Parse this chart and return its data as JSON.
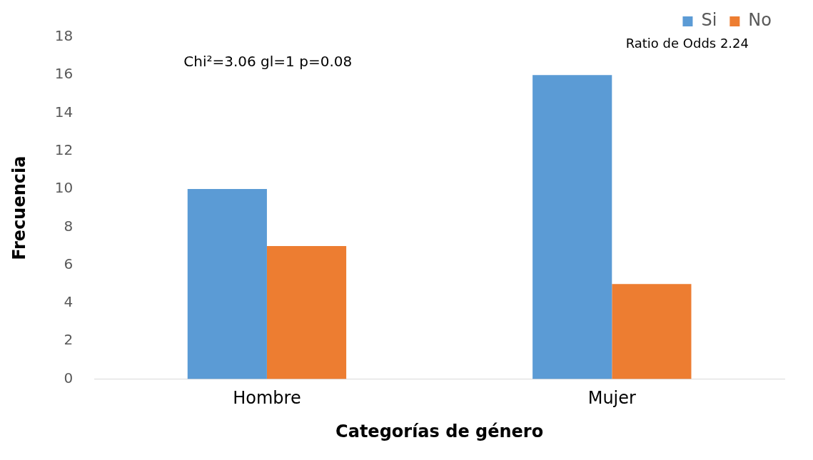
{
  "chart_data": {
    "type": "bar",
    "xlabel": "Categorías de género",
    "ylabel": "Frecuencia",
    "categories": [
      "Hombre",
      "Mujer"
    ],
    "series": [
      {
        "name": "Si",
        "color": "#5b9bd5",
        "values": [
          10,
          16
        ]
      },
      {
        "name": "No",
        "color": "#ed7d31",
        "values": [
          7,
          5
        ]
      }
    ],
    "ylim": [
      0,
      18
    ],
    "yticks": [
      0,
      2,
      4,
      6,
      8,
      10,
      12,
      14,
      16,
      18
    ],
    "grid": false,
    "legend": "top right",
    "annotations": [
      "Chi²=3.06 gl=1 p=0.08",
      "Ratio de Odds 2.24"
    ]
  }
}
